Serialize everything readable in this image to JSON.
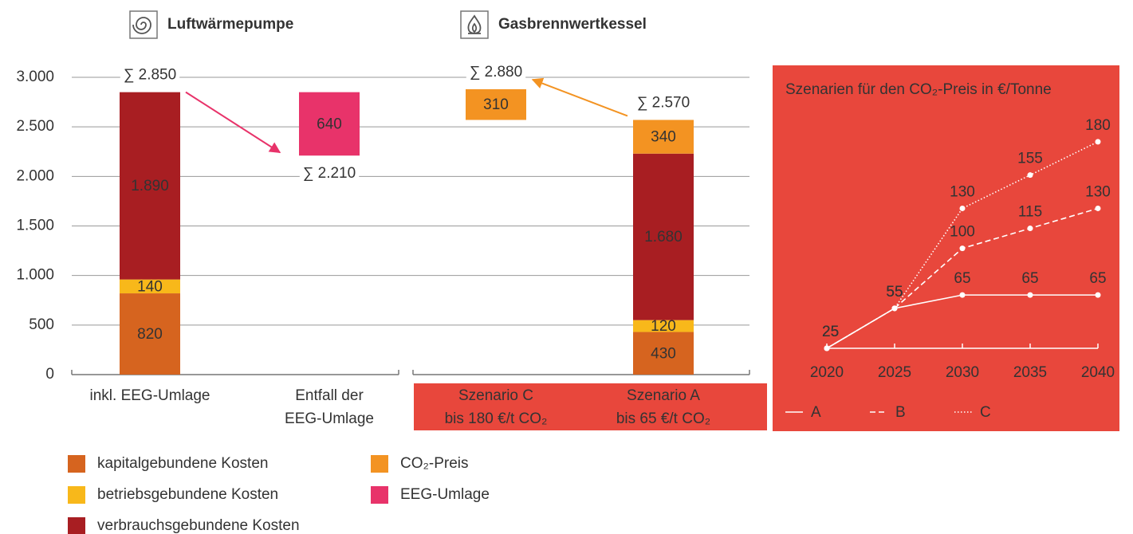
{
  "chart_data": [
    {
      "type": "bar",
      "groups": [
        {
          "label": "Luftwärmepumpe",
          "columns": 2
        },
        {
          "label": "Gasbrennwertkessel",
          "columns": 2,
          "background": "#e8473c"
        }
      ],
      "categories": [
        [
          "inkl. EEG-Umlage"
        ],
        [
          "Entfall der",
          "EEG-Umlage"
        ],
        [
          "Szenario C",
          "bis 180 €/t CO₂"
        ],
        [
          "Szenario A",
          "bis 65 €/t CO₂"
        ]
      ],
      "series": [
        {
          "name": "kapitalgebundene Kosten",
          "color": "#d6641f",
          "label_color": "#ffffff",
          "values": [
            820,
            null,
            null,
            430
          ]
        },
        {
          "name": "betriebsgebundene Kosten",
          "color": "#f8b81a",
          "label_color": "#ffffff",
          "values": [
            140,
            null,
            null,
            120
          ]
        },
        {
          "name": "verbrauchsgebundene Kosten",
          "color": "#a81e22",
          "label_color": "#ffffff",
          "values": [
            1890,
            null,
            null,
            1680
          ],
          "value_labels": [
            "1.890",
            null,
            null,
            "1.680"
          ]
        },
        {
          "name": "CO₂-Preis",
          "color": "#f39322",
          "label_color": "#222222",
          "values": [
            null,
            null,
            310,
            340
          ]
        },
        {
          "name": "EEG-Umlage",
          "color": "#e8336a",
          "label_color": "#ffffff",
          "values": [
            null,
            640,
            null,
            null
          ]
        }
      ],
      "totals": {
        "values": [
          2850,
          2210,
          2880,
          2570
        ],
        "value_labels": [
          "∑ 2.850",
          "∑ 2.210",
          "∑ 2.880",
          "∑ 2.570"
        ]
      },
      "arrows": [
        {
          "from": 0,
          "to": 1
        },
        {
          "from": 3,
          "to": 2
        }
      ],
      "ylim": [
        0,
        3000
      ],
      "yticks": [
        0,
        500,
        {
          "value": 1000,
          "label": "1.000"
        },
        {
          "value": 1500,
          "label": "1.500"
        },
        {
          "value": 2000,
          "label": "2.000"
        },
        {
          "value": 2500,
          "label": "2.500"
        },
        {
          "value": 3000,
          "label": "3.000"
        }
      ],
      "grid": true
    },
    {
      "type": "line",
      "title": "Szenarien für den CO₂-Preis in €/Tonne",
      "background": "#e8473c",
      "x": [
        2020,
        2025,
        2030,
        2035,
        2040
      ],
      "xlim": [
        2020,
        2040
      ],
      "xticks": [
        2020,
        2025,
        2030,
        2035,
        2040
      ],
      "ylim": [
        25,
        220
      ],
      "series": [
        {
          "name": "A",
          "color": "#ffffff",
          "dash": "solid",
          "values": [
            25,
            55,
            65,
            65,
            65
          ]
        },
        {
          "name": "B",
          "color": "#ffffff",
          "dash": "dashed",
          "values": [
            25,
            55,
            100,
            115,
            130
          ]
        },
        {
          "name": "C",
          "color": "#ffffff",
          "dash": "dotted",
          "values": [
            25,
            55,
            130,
            155,
            180
          ]
        }
      ]
    }
  ]
}
